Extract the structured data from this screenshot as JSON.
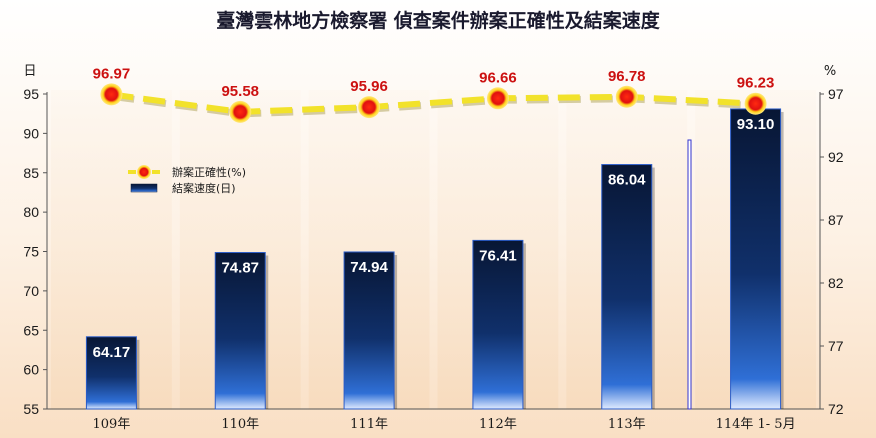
{
  "chart_data": {
    "type": "bar+line",
    "title": "臺灣雲林地方檢察署  偵查案件辦案正確性及結案速度",
    "categories": [
      "109年",
      "110年",
      "111年",
      "112年",
      "113年",
      "114年 1- 5月"
    ],
    "left_axis": {
      "unit": "日",
      "min": 55,
      "max": 95,
      "ticks": [
        55,
        60,
        65,
        70,
        75,
        80,
        85,
        90,
        95
      ]
    },
    "right_axis": {
      "unit": "%",
      "min": 72,
      "max": 97,
      "ticks": [
        72,
        77,
        82,
        87,
        92,
        97
      ]
    },
    "series": [
      {
        "name": "結案速度(日)",
        "type": "bar",
        "axis": "left",
        "values": [
          64.17,
          74.87,
          74.94,
          76.41,
          86.04,
          93.1
        ],
        "labels": [
          "64.17",
          "74.87",
          "74.94",
          "76.41",
          "86.04",
          "93.10"
        ]
      },
      {
        "name": "辦案正確性(%)",
        "type": "line",
        "axis": "right",
        "values": [
          96.97,
          95.58,
          95.96,
          96.66,
          96.78,
          96.23
        ],
        "labels": [
          "96.97",
          "95.58",
          "95.96",
          "96.66",
          "96.78",
          "96.23"
        ]
      }
    ],
    "legend_position": "upper-left inside plot",
    "colors": {
      "bar_top": "#0b1a3d",
      "bar_bottom": "#2f6fd6",
      "line": "#f2e22a",
      "marker_fill": "#e01010",
      "marker_ring": "#ffd21a",
      "line_label": "#cc1111"
    },
    "grid": false
  }
}
